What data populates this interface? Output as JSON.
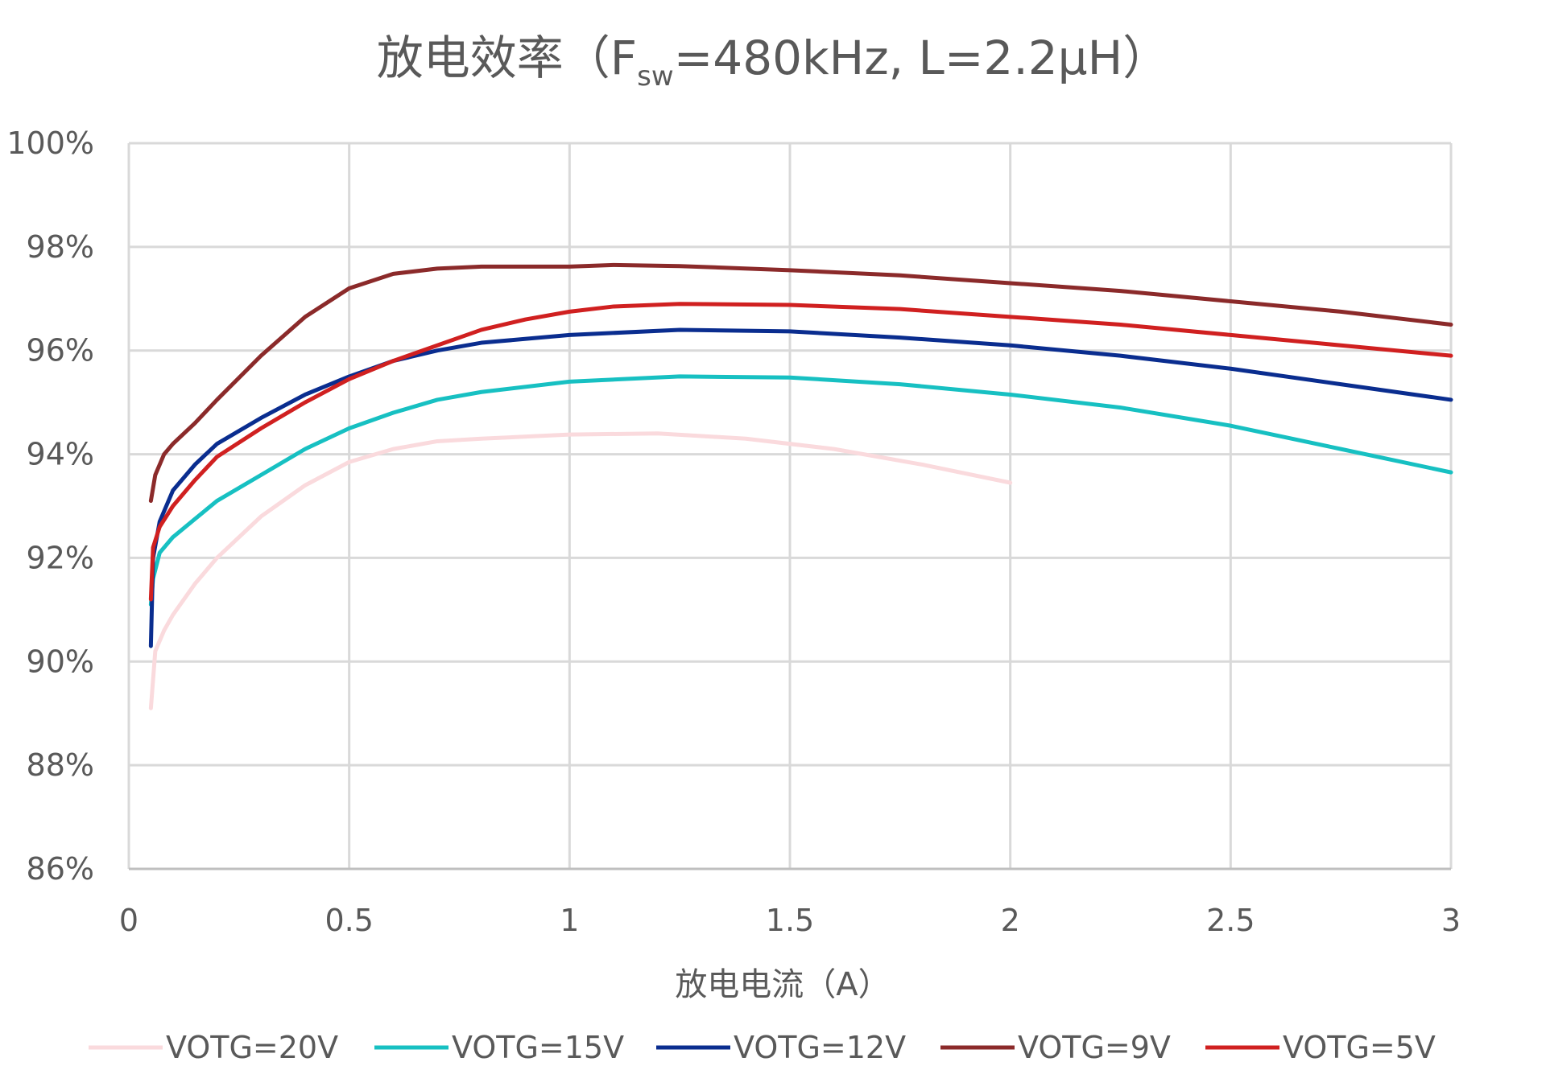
{
  "chart_data": {
    "type": "line",
    "title": "放电效率（F",
    "title_sub": "sw",
    "title_rest": "=480kHz, L=2.2μH）",
    "xlabel": "放电电流（A）",
    "ylabel": "",
    "xlim": [
      0,
      3
    ],
    "ylim": [
      86,
      100
    ],
    "x_ticks": [
      "0",
      "0.5",
      "1",
      "1.5",
      "2",
      "2.5",
      "3"
    ],
    "y_ticks": [
      "86%",
      "88%",
      "90%",
      "92%",
      "94%",
      "96%",
      "98%",
      "100%"
    ],
    "grid": true,
    "legend_position": "bottom",
    "series": [
      {
        "name": "VOTG=20V",
        "color": "#fadadd",
        "points": [
          [
            0.05,
            89.1
          ],
          [
            0.06,
            90.2
          ],
          [
            0.08,
            90.6
          ],
          [
            0.1,
            90.9
          ],
          [
            0.15,
            91.5
          ],
          [
            0.2,
            92.0
          ],
          [
            0.3,
            92.8
          ],
          [
            0.4,
            93.4
          ],
          [
            0.5,
            93.85
          ],
          [
            0.6,
            94.1
          ],
          [
            0.7,
            94.25
          ],
          [
            0.8,
            94.3
          ],
          [
            1.0,
            94.38
          ],
          [
            1.2,
            94.4
          ],
          [
            1.4,
            94.3
          ],
          [
            1.6,
            94.1
          ],
          [
            1.8,
            93.8
          ],
          [
            2.0,
            93.45
          ]
        ]
      },
      {
        "name": "VOTG=15V",
        "color": "#17c0c2",
        "points": [
          [
            0.05,
            91.1
          ],
          [
            0.055,
            91.6
          ],
          [
            0.07,
            92.1
          ],
          [
            0.1,
            92.4
          ],
          [
            0.15,
            92.75
          ],
          [
            0.2,
            93.1
          ],
          [
            0.3,
            93.6
          ],
          [
            0.4,
            94.1
          ],
          [
            0.5,
            94.5
          ],
          [
            0.6,
            94.8
          ],
          [
            0.7,
            95.05
          ],
          [
            0.8,
            95.2
          ],
          [
            1.0,
            95.4
          ],
          [
            1.25,
            95.5
          ],
          [
            1.5,
            95.48
          ],
          [
            1.75,
            95.35
          ],
          [
            2.0,
            95.15
          ],
          [
            2.25,
            94.9
          ],
          [
            2.5,
            94.55
          ],
          [
            2.75,
            94.1
          ],
          [
            3.0,
            93.65
          ]
        ]
      },
      {
        "name": "VOTG=12V",
        "color": "#0a2d8f",
        "points": [
          [
            0.05,
            90.3
          ],
          [
            0.055,
            92.0
          ],
          [
            0.07,
            92.7
          ],
          [
            0.1,
            93.3
          ],
          [
            0.15,
            93.8
          ],
          [
            0.2,
            94.2
          ],
          [
            0.3,
            94.7
          ],
          [
            0.4,
            95.15
          ],
          [
            0.5,
            95.5
          ],
          [
            0.6,
            95.8
          ],
          [
            0.7,
            96.0
          ],
          [
            0.8,
            96.15
          ],
          [
            1.0,
            96.3
          ],
          [
            1.25,
            96.4
          ],
          [
            1.5,
            96.37
          ],
          [
            1.75,
            96.25
          ],
          [
            2.0,
            96.1
          ],
          [
            2.25,
            95.9
          ],
          [
            2.5,
            95.65
          ],
          [
            2.75,
            95.35
          ],
          [
            3.0,
            95.05
          ]
        ]
      },
      {
        "name": "VOTG=9V",
        "color": "#8b2a2a",
        "points": [
          [
            0.05,
            93.1
          ],
          [
            0.06,
            93.6
          ],
          [
            0.08,
            94.0
          ],
          [
            0.1,
            94.2
          ],
          [
            0.15,
            94.6
          ],
          [
            0.2,
            95.05
          ],
          [
            0.3,
            95.9
          ],
          [
            0.4,
            96.65
          ],
          [
            0.5,
            97.2
          ],
          [
            0.6,
            97.48
          ],
          [
            0.7,
            97.58
          ],
          [
            0.8,
            97.62
          ],
          [
            1.0,
            97.62
          ],
          [
            1.1,
            97.65
          ],
          [
            1.25,
            97.63
          ],
          [
            1.5,
            97.55
          ],
          [
            1.75,
            97.45
          ],
          [
            2.0,
            97.3
          ],
          [
            2.25,
            97.15
          ],
          [
            2.5,
            96.95
          ],
          [
            2.75,
            96.75
          ],
          [
            3.0,
            96.5
          ]
        ]
      },
      {
        "name": "VOTG=5V",
        "color": "#d02020",
        "points": [
          [
            0.05,
            91.2
          ],
          [
            0.055,
            92.2
          ],
          [
            0.07,
            92.6
          ],
          [
            0.1,
            93.0
          ],
          [
            0.15,
            93.5
          ],
          [
            0.2,
            93.95
          ],
          [
            0.3,
            94.5
          ],
          [
            0.4,
            95.0
          ],
          [
            0.5,
            95.45
          ],
          [
            0.6,
            95.8
          ],
          [
            0.7,
            96.1
          ],
          [
            0.8,
            96.4
          ],
          [
            0.9,
            96.6
          ],
          [
            1.0,
            96.75
          ],
          [
            1.1,
            96.85
          ],
          [
            1.25,
            96.9
          ],
          [
            1.5,
            96.88
          ],
          [
            1.75,
            96.8
          ],
          [
            2.0,
            96.65
          ],
          [
            2.25,
            96.5
          ],
          [
            2.5,
            96.3
          ],
          [
            2.75,
            96.1
          ],
          [
            3.0,
            95.9
          ]
        ]
      }
    ]
  }
}
